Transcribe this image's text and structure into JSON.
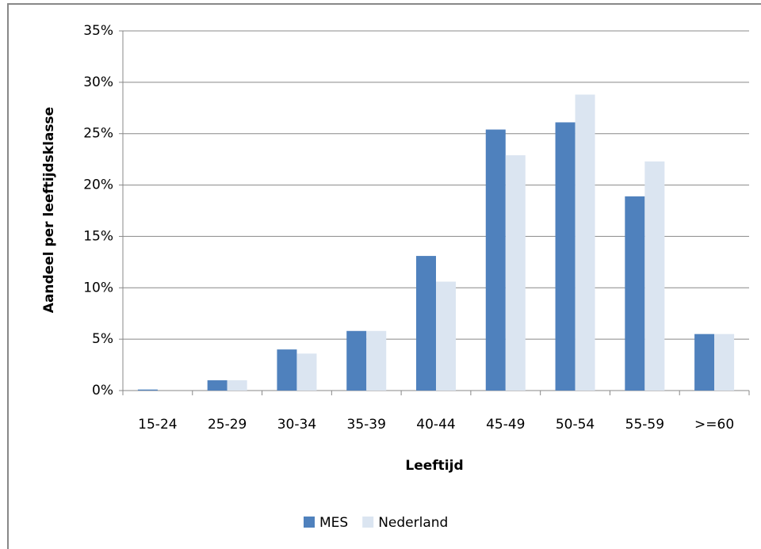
{
  "chart_data": {
    "type": "bar",
    "y_label": "Aandeel per leeftijdsklasse",
    "x_label": "Leeftijd",
    "categories": [
      "15-24",
      "25-29",
      "30-34",
      "35-39",
      "40-44",
      "45-49",
      "50-54",
      "55-59",
      ">=60"
    ],
    "series": [
      {
        "name": "MES",
        "color": "#4f81bd",
        "values": [
          0.1,
          1.0,
          4.0,
          5.8,
          13.1,
          25.4,
          26.1,
          18.9,
          5.5
        ]
      },
      {
        "name": "Nederland",
        "color": "#dbe5f1",
        "values": [
          0,
          1.0,
          3.6,
          5.8,
          10.6,
          22.9,
          28.8,
          22.3,
          5.5
        ]
      }
    ],
    "ylim": [
      0,
      35
    ],
    "yticks": [
      {
        "value": 0,
        "label": "0%"
      },
      {
        "value": 5,
        "label": "5%"
      },
      {
        "value": 10,
        "label": "10%"
      },
      {
        "value": 15,
        "label": "15%"
      },
      {
        "value": 20,
        "label": "20%"
      },
      {
        "value": 25,
        "label": "25%"
      },
      {
        "value": 30,
        "label": "30%"
      },
      {
        "value": 35,
        "label": "35%"
      }
    ],
    "grid": true,
    "legend": "bottom"
  }
}
